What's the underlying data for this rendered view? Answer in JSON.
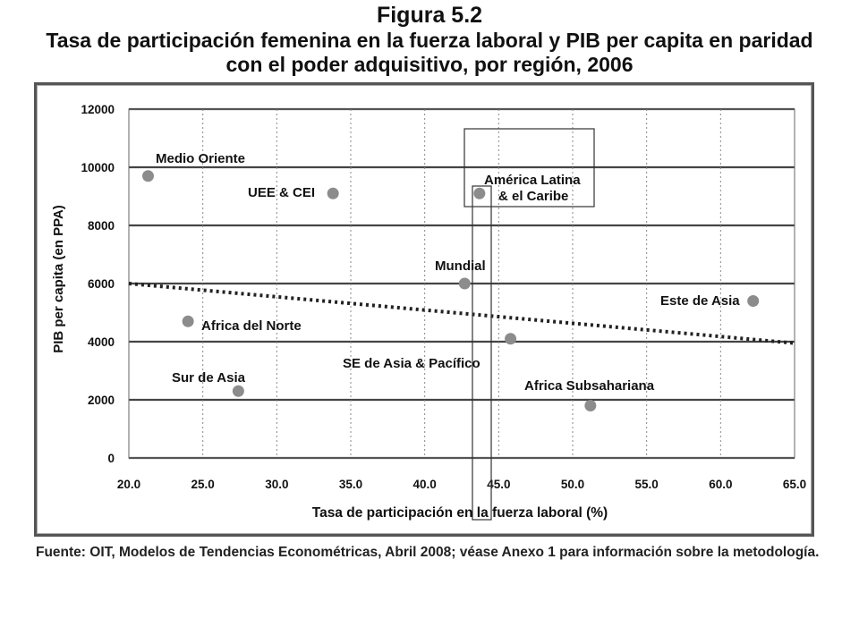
{
  "figure": {
    "number": "Figura 5.2",
    "title_line1": "Tasa de participación femenina en la fuerza laboral y PIB per capita en paridad",
    "title_line2": "con el poder adquisitivo, por región, 2006"
  },
  "source": "Fuente: OIT, Modelos de Tendencias Econométricas, Abril 2008; véase Anexo 1 para información sobre la metodología.",
  "colors": {
    "point": "#8c8c8c",
    "grid": "#444444",
    "trend": "#222222",
    "highlight": "#333333"
  },
  "chart_data": {
    "type": "scatter",
    "title": "",
    "xlabel": "Tasa de participación en la fuerza laboral (%)",
    "ylabel": "PIB per capita (en PPA)",
    "xlim": [
      20,
      65
    ],
    "ylim": [
      0,
      12000
    ],
    "x_ticks": [
      "20.0",
      "25.0",
      "30.0",
      "35.0",
      "40.0",
      "45.0",
      "50.0",
      "55.0",
      "60.0",
      "65.0"
    ],
    "y_ticks": [
      "0",
      "2000",
      "4000",
      "6000",
      "8000",
      "10000",
      "12000"
    ],
    "grid": true,
    "legend": "none",
    "points": [
      {
        "label": "Medio Oriente",
        "x": 21.3,
        "y": 9700
      },
      {
        "label": "UEE & CEI",
        "x": 33.8,
        "y": 9100
      },
      {
        "label": "América Latina & el Caribe",
        "x": 43.7,
        "y": 9100
      },
      {
        "label": "Mundial",
        "x": 42.7,
        "y": 6000
      },
      {
        "label": "Este de Asia",
        "x": 62.2,
        "y": 5400
      },
      {
        "label": "Africa del Norte",
        "x": 24.0,
        "y": 4700
      },
      {
        "label": "SE de Asia & Pacífico",
        "x": 45.8,
        "y": 4100
      },
      {
        "label": "Sur de Asia",
        "x": 27.4,
        "y": 2300
      },
      {
        "label": "Africa Subsahariana",
        "x": 51.2,
        "y": 1800
      }
    ],
    "trendline": {
      "x": [
        20,
        65
      ],
      "y": [
        6000,
        3950
      ]
    }
  }
}
